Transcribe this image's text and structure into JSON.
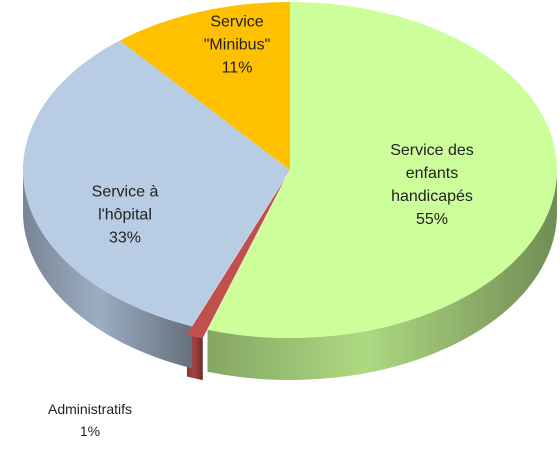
{
  "chart_data": {
    "type": "pie3d",
    "categories": [
      "Service des enfants handicapés",
      "Administratifs",
      "Service à l'hôpital",
      "Service \"Minibus\""
    ],
    "values": [
      55,
      1,
      33,
      11
    ],
    "value_labels": [
      "55%",
      "1%",
      "33%",
      "11%"
    ],
    "colors": [
      "#ccff99",
      "#c0504d",
      "#b8cce4",
      "#ffc000"
    ]
  }
}
